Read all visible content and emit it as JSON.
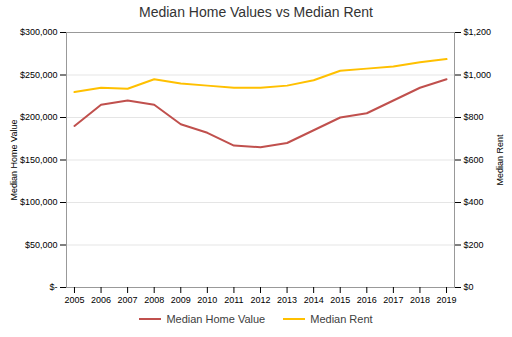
{
  "chart_data": {
    "type": "line",
    "title": "Median Home Values vs Median Rent",
    "x": [
      2005,
      2006,
      2007,
      2008,
      2009,
      2010,
      2011,
      2012,
      2013,
      2014,
      2015,
      2016,
      2017,
      2018,
      2019
    ],
    "xlim": [
      2004.7,
      2019.3
    ],
    "xticks": [
      2005,
      2006,
      2007,
      2008,
      2009,
      2010,
      2011,
      2012,
      2013,
      2014,
      2015,
      2016,
      2017,
      2018,
      2019
    ],
    "ylabel": "Median Home Value",
    "ylim": [
      0,
      300000
    ],
    "yticks": [
      {
        "value": 0,
        "label": "$-"
      },
      {
        "value": 50000,
        "label": "$50,000"
      },
      {
        "value": 100000,
        "label": "$100,000"
      },
      {
        "value": 150000,
        "label": "$150,000"
      },
      {
        "value": 200000,
        "label": "$200,000"
      },
      {
        "value": 250000,
        "label": "$250,000"
      },
      {
        "value": 300000,
        "label": "$300,000"
      }
    ],
    "y2label": "Median Rent",
    "y2lim": [
      0,
      1200
    ],
    "y2ticks": [
      {
        "value": 0,
        "label": "$0"
      },
      {
        "value": 200,
        "label": "$200"
      },
      {
        "value": 400,
        "label": "$400"
      },
      {
        "value": 600,
        "label": "$600"
      },
      {
        "value": 800,
        "label": "$800"
      },
      {
        "value": 1000,
        "label": "$1,000"
      },
      {
        "value": 1200,
        "label": "$1,200"
      }
    ],
    "series": [
      {
        "name": "Median Home Value",
        "color": "#C0504D",
        "values": [
          190000,
          215000,
          220000,
          215000,
          192000,
          182000,
          167000,
          165000,
          170000,
          185000,
          200000,
          205000,
          220000,
          235000,
          245000
        ]
      },
      {
        "name": "Median Rent",
        "color": "#FFC000",
        "axis": "y2",
        "values": [
          920,
          940,
          935,
          980,
          960,
          950,
          940,
          940,
          950,
          975,
          1020,
          1030,
          1040,
          1060,
          1075
        ]
      }
    ],
    "grid": "y",
    "legend": "bottom"
  }
}
